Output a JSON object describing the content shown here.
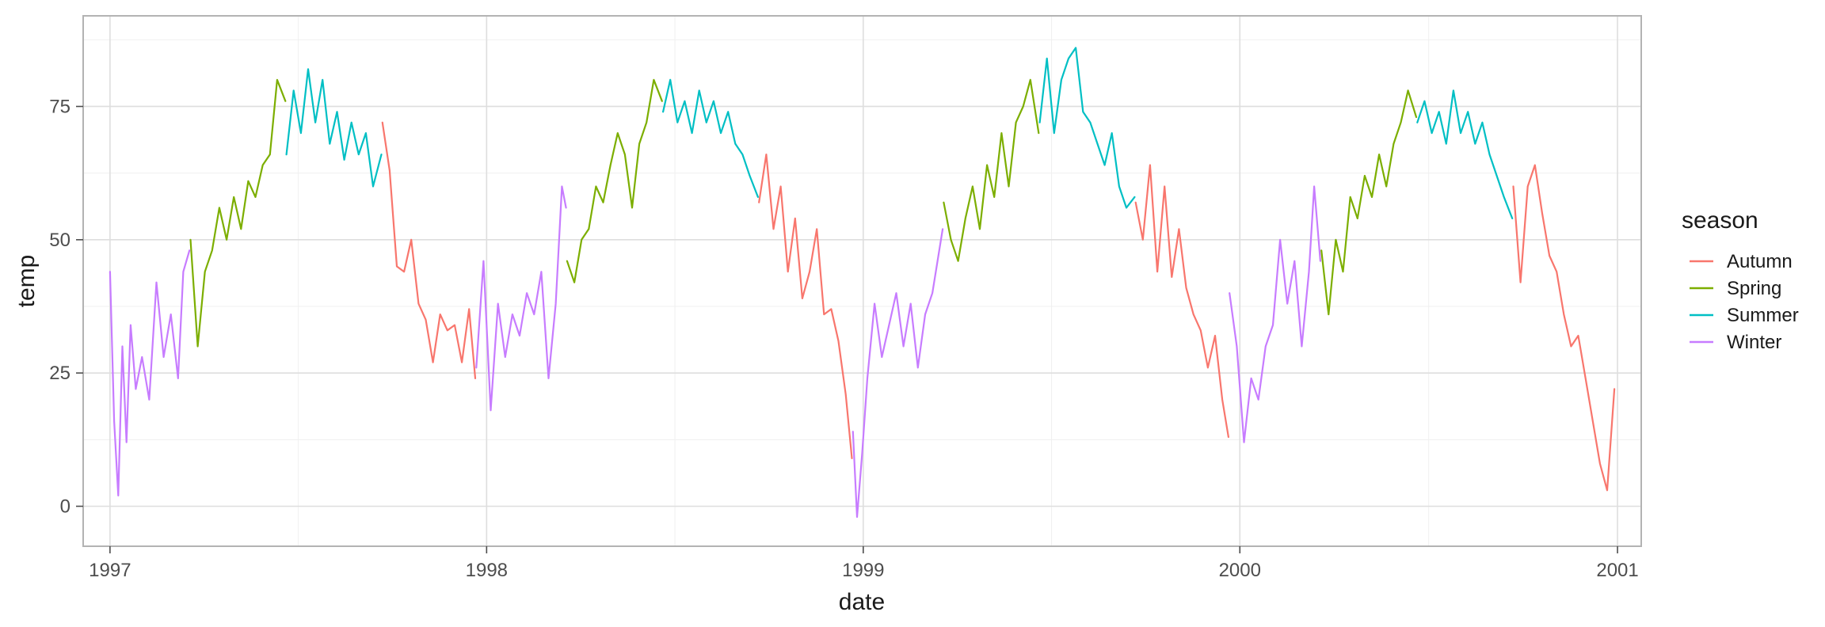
{
  "chart_data": {
    "type": "line",
    "xlabel": "date",
    "ylabel": "temp",
    "x_ticks": [
      "1997",
      "1998",
      "1999",
      "2000",
      "2001"
    ],
    "y_ticks": [
      0,
      25,
      50,
      75
    ],
    "xlim": [
      "1996-12-06",
      "2001-01-24"
    ],
    "ylim": [
      -7.5,
      92
    ],
    "grid": true,
    "legend": {
      "title": "season",
      "position": "right"
    },
    "series": [
      {
        "name": "Autumn",
        "color": "#F8766D",
        "segments": [
          {
            "x": [
              "1997-09-22",
              "1997-09-29",
              "1997-10-06",
              "1997-10-13",
              "1997-10-20",
              "1997-10-27",
              "1997-11-03",
              "1997-11-10",
              "1997-11-17",
              "1997-11-24",
              "1997-12-01",
              "1997-12-08",
              "1997-12-15",
              "1997-12-21"
            ],
            "y": [
              72,
              63,
              45,
              44,
              50,
              38,
              35,
              27,
              36,
              33,
              34,
              27,
              37,
              24
            ]
          },
          {
            "x": [
              "1998-09-22",
              "1998-09-29",
              "1998-10-06",
              "1998-10-13",
              "1998-10-20",
              "1998-10-27",
              "1998-11-03",
              "1998-11-10",
              "1998-11-17",
              "1998-11-24",
              "1998-12-01",
              "1998-12-08",
              "1998-12-15",
              "1998-12-21"
            ],
            "y": [
              57,
              66,
              52,
              60,
              44,
              54,
              39,
              44,
              52,
              36,
              37,
              31,
              21,
              9
            ]
          },
          {
            "x": [
              "1999-09-22",
              "1999-09-29",
              "1999-10-06",
              "1999-10-13",
              "1999-10-20",
              "1999-10-27",
              "1999-11-03",
              "1999-11-10",
              "1999-11-17",
              "1999-11-24",
              "1999-12-01",
              "1999-12-08",
              "1999-12-15",
              "1999-12-21"
            ],
            "y": [
              57,
              50,
              64,
              44,
              60,
              43,
              52,
              41,
              36,
              33,
              26,
              32,
              20,
              13
            ]
          },
          {
            "x": [
              "2000-09-22",
              "2000-09-29",
              "2000-10-06",
              "2000-10-13",
              "2000-10-20",
              "2000-10-27",
              "2000-11-03",
              "2000-11-10",
              "2000-11-17",
              "2000-11-24",
              "2000-12-01",
              "2000-12-08",
              "2000-12-15",
              "2000-12-22",
              "2000-12-29"
            ],
            "y": [
              60,
              42,
              60,
              64,
              55,
              47,
              44,
              36,
              30,
              32,
              24,
              16,
              8,
              3,
              22
            ]
          }
        ]
      },
      {
        "name": "Spring",
        "color": "#7CAE00",
        "segments": [
          {
            "x": [
              "1997-03-20",
              "1997-03-27",
              "1997-04-03",
              "1997-04-10",
              "1997-04-17",
              "1997-04-24",
              "1997-05-01",
              "1997-05-08",
              "1997-05-15",
              "1997-05-22",
              "1997-05-29",
              "1997-06-05",
              "1997-06-12",
              "1997-06-20"
            ],
            "y": [
              50,
              30,
              44,
              48,
              56,
              50,
              58,
              52,
              61,
              58,
              64,
              66,
              80,
              76
            ]
          },
          {
            "x": [
              "1998-03-20",
              "1998-03-27",
              "1998-04-03",
              "1998-04-10",
              "1998-04-17",
              "1998-04-24",
              "1998-05-01",
              "1998-05-08",
              "1998-05-15",
              "1998-05-22",
              "1998-05-29",
              "1998-06-05",
              "1998-06-12",
              "1998-06-20"
            ],
            "y": [
              46,
              42,
              50,
              52,
              60,
              57,
              64,
              70,
              66,
              56,
              68,
              72,
              80,
              76
            ]
          },
          {
            "x": [
              "1999-03-20",
              "1999-03-27",
              "1999-04-03",
              "1999-04-10",
              "1999-04-17",
              "1999-04-24",
              "1999-05-01",
              "1999-05-08",
              "1999-05-15",
              "1999-05-22",
              "1999-05-29",
              "1999-06-05",
              "1999-06-12",
              "1999-06-20"
            ],
            "y": [
              57,
              50,
              46,
              54,
              60,
              52,
              64,
              58,
              70,
              60,
              72,
              75,
              80,
              70
            ]
          },
          {
            "x": [
              "2000-03-20",
              "2000-03-27",
              "2000-04-03",
              "2000-04-10",
              "2000-04-17",
              "2000-04-24",
              "2000-05-01",
              "2000-05-08",
              "2000-05-15",
              "2000-05-22",
              "2000-05-29",
              "2000-06-05",
              "2000-06-12",
              "2000-06-20"
            ],
            "y": [
              48,
              36,
              50,
              44,
              58,
              54,
              62,
              58,
              66,
              60,
              68,
              72,
              78,
              73
            ]
          }
        ]
      },
      {
        "name": "Summer",
        "color": "#00BFC4",
        "segments": [
          {
            "x": [
              "1997-06-21",
              "1997-06-28",
              "1997-07-05",
              "1997-07-12",
              "1997-07-19",
              "1997-07-26",
              "1997-08-02",
              "1997-08-09",
              "1997-08-16",
              "1997-08-23",
              "1997-08-30",
              "1997-09-06",
              "1997-09-13",
              "1997-09-21"
            ],
            "y": [
              66,
              78,
              70,
              82,
              72,
              80,
              68,
              74,
              65,
              72,
              66,
              70,
              60,
              66
            ]
          },
          {
            "x": [
              "1998-06-21",
              "1998-06-28",
              "1998-07-05",
              "1998-07-12",
              "1998-07-19",
              "1998-07-26",
              "1998-08-02",
              "1998-08-09",
              "1998-08-16",
              "1998-08-23",
              "1998-08-30",
              "1998-09-06",
              "1998-09-13",
              "1998-09-21"
            ],
            "y": [
              74,
              80,
              72,
              76,
              70,
              78,
              72,
              76,
              70,
              74,
              68,
              66,
              62,
              58
            ]
          },
          {
            "x": [
              "1999-06-21",
              "1999-06-28",
              "1999-07-05",
              "1999-07-12",
              "1999-07-19",
              "1999-07-26",
              "1999-08-02",
              "1999-08-09",
              "1999-08-16",
              "1999-08-23",
              "1999-08-30",
              "1999-09-06",
              "1999-09-13",
              "1999-09-21"
            ],
            "y": [
              72,
              84,
              70,
              80,
              84,
              86,
              74,
              72,
              68,
              64,
              70,
              60,
              56,
              58
            ]
          },
          {
            "x": [
              "2000-06-21",
              "2000-06-28",
              "2000-07-05",
              "2000-07-12",
              "2000-07-19",
              "2000-07-26",
              "2000-08-02",
              "2000-08-09",
              "2000-08-16",
              "2000-08-23",
              "2000-08-30",
              "2000-09-06",
              "2000-09-13",
              "2000-09-21"
            ],
            "y": [
              72,
              76,
              70,
              74,
              68,
              78,
              70,
              74,
              68,
              72,
              66,
              62,
              58,
              54
            ]
          }
        ]
      },
      {
        "name": "Winter",
        "color": "#C77CFF",
        "segments": [
          {
            "x": [
              "1997-01-01",
              "1997-01-05",
              "1997-01-09",
              "1997-01-13",
              "1997-01-17",
              "1997-01-21",
              "1997-01-26",
              "1997-02-01",
              "1997-02-08",
              "1997-02-15",
              "1997-02-22",
              "1997-03-01",
              "1997-03-08",
              "1997-03-13",
              "1997-03-19"
            ],
            "y": [
              44,
              16,
              2,
              30,
              12,
              34,
              22,
              28,
              20,
              42,
              28,
              36,
              24,
              44,
              48
            ]
          },
          {
            "x": [
              "1997-12-22",
              "1997-12-29",
              "1998-01-05",
              "1998-01-12",
              "1998-01-19",
              "1998-01-26",
              "1998-02-02",
              "1998-02-09",
              "1998-02-16",
              "1998-02-23",
              "1998-03-02",
              "1998-03-09",
              "1998-03-15",
              "1998-03-19"
            ],
            "y": [
              26,
              46,
              18,
              38,
              28,
              36,
              32,
              40,
              36,
              44,
              24,
              38,
              60,
              56
            ]
          },
          {
            "x": [
              "1998-12-22",
              "1998-12-26",
              "1998-12-31",
              "1999-01-05",
              "1999-01-12",
              "1999-01-19",
              "1999-01-26",
              "1999-02-02",
              "1999-02-09",
              "1999-02-16",
              "1999-02-23",
              "1999-03-02",
              "1999-03-09",
              "1999-03-19"
            ],
            "y": [
              14,
              -2,
              10,
              24,
              38,
              28,
              34,
              40,
              30,
              38,
              26,
              36,
              40,
              52
            ]
          },
          {
            "x": [
              "1999-12-22",
              "1999-12-29",
              "2000-01-05",
              "2000-01-12",
              "2000-01-19",
              "2000-01-26",
              "2000-02-02",
              "2000-02-09",
              "2000-02-16",
              "2000-02-23",
              "2000-03-01",
              "2000-03-08",
              "2000-03-13",
              "2000-03-19"
            ],
            "y": [
              40,
              30,
              12,
              24,
              20,
              30,
              34,
              50,
              38,
              46,
              30,
              44,
              60,
              46
            ]
          }
        ]
      }
    ]
  }
}
